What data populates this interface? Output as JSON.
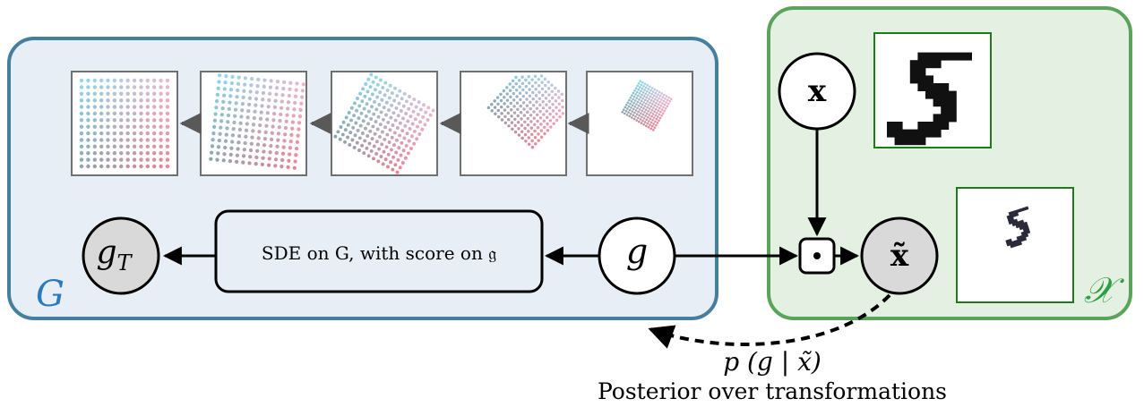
{
  "regions": {
    "group": {
      "label": "G",
      "fill": "#e8eef5",
      "stroke": "#467f9e",
      "label_color": "#2b7bba"
    },
    "data_space": {
      "label": "𝒳",
      "fill": "#e4f0e2",
      "stroke": "#5aa35a",
      "label_color": "#2e9e44"
    }
  },
  "nodes": {
    "x": {
      "label": "x"
    },
    "g": {
      "label": "g"
    },
    "g_T": {
      "label_main": "g",
      "label_sub": "T"
    },
    "x_tilde": {
      "label": "x̃"
    },
    "action": {
      "label": "·"
    }
  },
  "sde_box": {
    "label": "SDE on G, with score on 𝔤"
  },
  "posterior": {
    "formula": "p (g | x̃)",
    "caption": "Posterior over transformations"
  },
  "colors": {
    "node_gray": "#d9d9d9",
    "frame_gray": "#707070",
    "frame_green": "#1a7d1a",
    "arrow_gray": "#595959"
  }
}
